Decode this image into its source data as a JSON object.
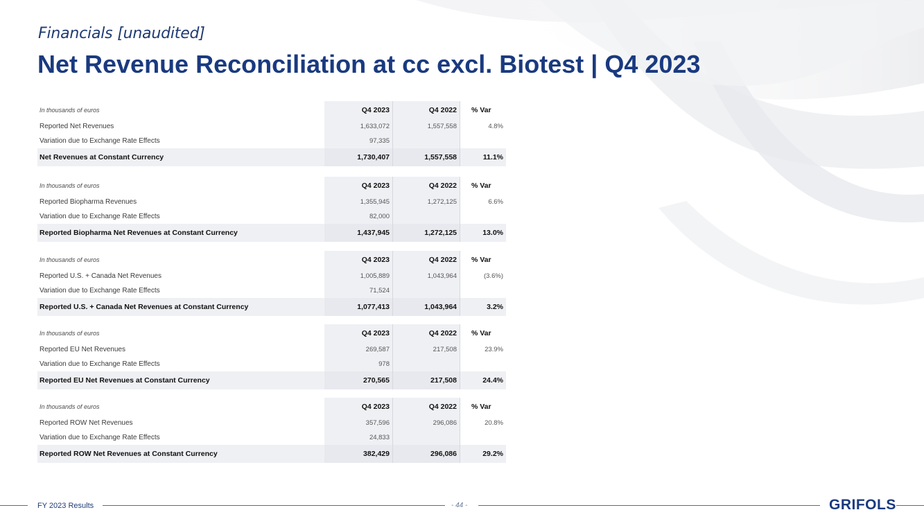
{
  "header": {
    "subtitle": "Financials [unaudited]",
    "title": "Net Revenue Reconciliation at cc excl. Biotest | Q4 2023"
  },
  "tables": [
    {
      "header": {
        "label": "In thousands of euros",
        "col1": "Q4 2023",
        "col2": "Q4 2022",
        "col3": "% Var"
      },
      "rows": [
        {
          "label": "Reported Net Revenues",
          "col1": "1,633,072",
          "col2": "1,557,558",
          "col3": "4.8%"
        },
        {
          "label": "Variation due to Exchange Rate Effects",
          "col1": "97,335",
          "col2": "",
          "col3": ""
        }
      ],
      "total": {
        "label": "Net Revenues at Constant Currency",
        "col1": "1,730,407",
        "col2": "1,557,558",
        "col3": "11.1%"
      }
    },
    {
      "header": {
        "label": "In thousands of euros",
        "col1": "Q4 2023",
        "col2": "Q4 2022",
        "col3": "% Var"
      },
      "rows": [
        {
          "label": "Reported Biopharma Revenues",
          "col1": "1,355,945",
          "col2": "1,272,125",
          "col3": "6.6%"
        },
        {
          "label": "Variation due to Exchange Rate Effects",
          "col1": "82,000",
          "col2": "",
          "col3": ""
        }
      ],
      "total": {
        "label": "Reported Biopharma Net Revenues at Constant Currency",
        "col1": "1,437,945",
        "col2": "1,272,125",
        "col3": "13.0%"
      }
    },
    {
      "header": {
        "label": "In thousands of euros",
        "col1": "Q4 2023",
        "col2": "Q4 2022",
        "col3": "% Var"
      },
      "rows": [
        {
          "label": "Reported U.S. + Canada Net Revenues",
          "col1": "1,005,889",
          "col2": "1,043,964",
          "col3": "(3.6%)"
        },
        {
          "label": "Variation due to Exchange Rate Effects",
          "col1": "71,524",
          "col2": "",
          "col3": ""
        }
      ],
      "total": {
        "label": "Reported U.S. + Canada Net Revenues at Constant Currency",
        "col1": "1,077,413",
        "col2": "1,043,964",
        "col3": "3.2%"
      }
    },
    {
      "header": {
        "label": "In thousands of euros",
        "col1": "Q4 2023",
        "col2": "Q4 2022",
        "col3": "% Var"
      },
      "rows": [
        {
          "label": "Reported EU Net Revenues",
          "col1": "269,587",
          "col2": "217,508",
          "col3": "23.9%"
        },
        {
          "label": "Variation due to Exchange Rate Effects",
          "col1": "978",
          "col2": "",
          "col3": ""
        }
      ],
      "total": {
        "label": "Reported EU Net Revenues at Constant Currency",
        "col1": "270,565",
        "col2": "217,508",
        "col3": "24.4%"
      }
    },
    {
      "header": {
        "label": "In thousands of euros",
        "col1": "Q4 2023",
        "col2": "Q4 2022",
        "col3": "% Var"
      },
      "rows": [
        {
          "label": "Reported ROW Net Revenues",
          "col1": "357,596",
          "col2": "296,086",
          "col3": "20.8%"
        },
        {
          "label": "Variation due to Exchange Rate Effects",
          "col1": "24,833",
          "col2": "",
          "col3": ""
        }
      ],
      "total": {
        "label": "Reported ROW Net Revenues at Constant Currency",
        "col1": "382,429",
        "col2": "296,086",
        "col3": "29.2%"
      }
    }
  ],
  "footer": {
    "left_text": "FY 2023 Results",
    "page_number": "- 44 -",
    "logo_text": "GRIFOLS"
  },
  "colors": {
    "title": "#1a3a80",
    "subtitle": "#1f3b73",
    "table_fill": "#eff0f4"
  }
}
